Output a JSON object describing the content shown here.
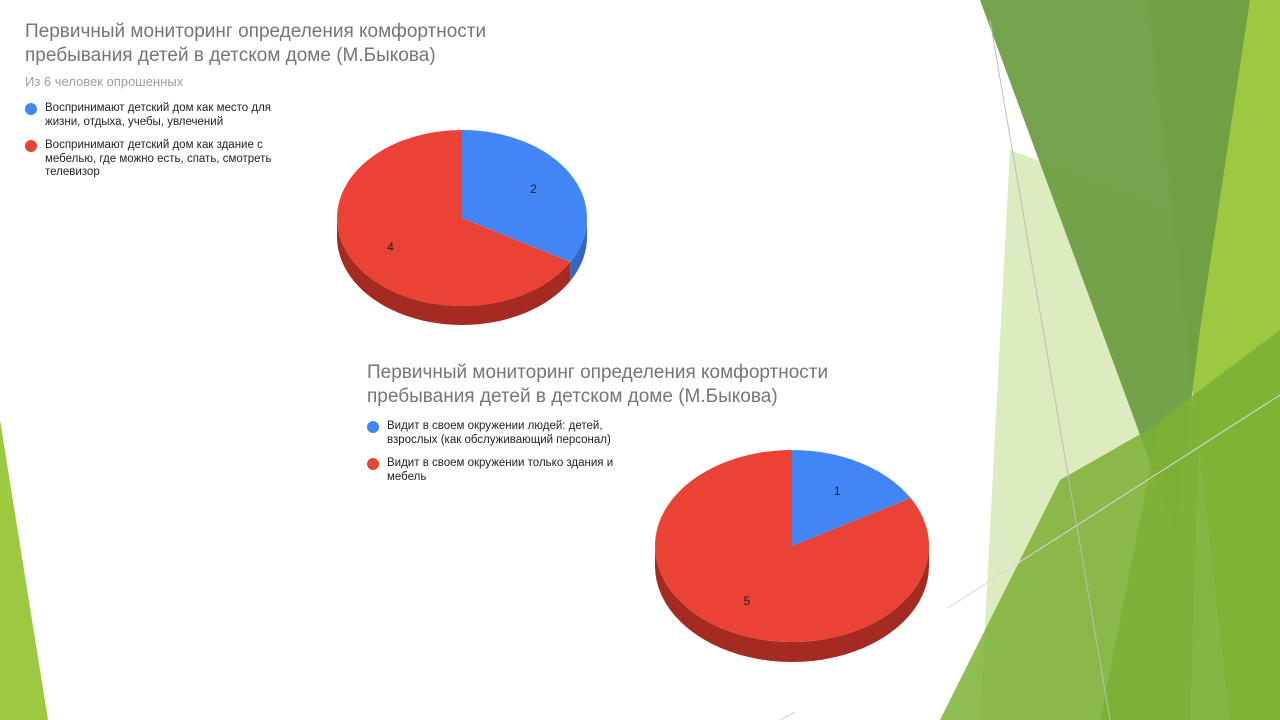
{
  "slide": {
    "decor_colors": {
      "dark_green": "#6e9e43",
      "mid_green": "#7bb035",
      "light_green": "#9cc93f",
      "pale_green": "#d6e9b3",
      "line_gray": "#bdbdbd"
    }
  },
  "chart_data": [
    {
      "type": "pie",
      "style": "3d",
      "title": "Первичный мониторинг определения комфортности пребывания детей в детском доме (М.Быкова)",
      "subtitle": "Из 6 человек опрошенных",
      "legend_position": "left",
      "categories": [
        "Воспринимают детский дом как место для жизни, отдыха, учебы, увлечений",
        "Воспринимают детский дом как здание с мебелью, где можно есть, спать, смотреть телевизор"
      ],
      "values": [
        2,
        4
      ],
      "colors": [
        "#4285f4",
        "#ea4335"
      ],
      "side_colors": [
        "#3367c4",
        "#a52a22"
      ]
    },
    {
      "type": "pie",
      "style": "3d",
      "title": "Первичный мониторинг определения комфортности пребывания детей в детском доме (М.Быкова)",
      "legend_position": "left",
      "categories": [
        "Видит в своем окружении людей: детей, взрослых (как обслуживающий персонал)",
        "Видит в своем окружении только здания и мебель"
      ],
      "values": [
        1,
        5
      ],
      "colors": [
        "#4285f4",
        "#ea4335"
      ],
      "side_colors": [
        "#3367c4",
        "#a52a22"
      ]
    }
  ]
}
